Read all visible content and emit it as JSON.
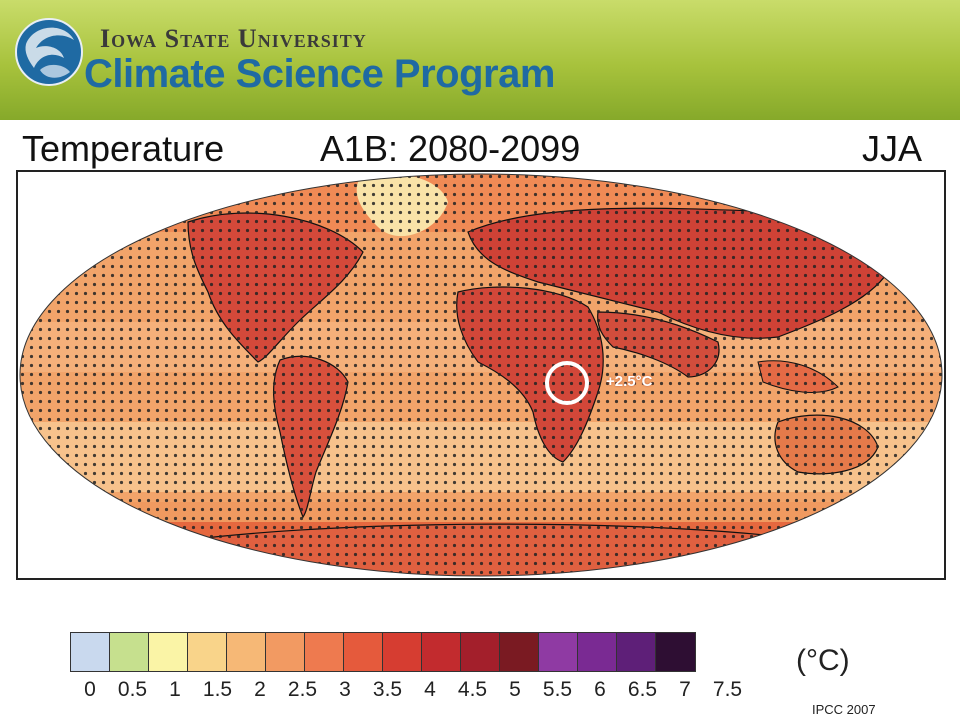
{
  "header": {
    "university": "Iowa State University",
    "program": "Climate Science Program",
    "logo_icon": "globe-swirl-logo"
  },
  "figure": {
    "title_left": "Temperature",
    "title_mid": "A1B: 2080-2099",
    "title_right": "JJA",
    "annotation": "+2.5°C",
    "annotation_marker": "circle-marker"
  },
  "legend": {
    "ticks": [
      "0",
      "0.5",
      "1",
      "1.5",
      "2",
      "2.5",
      "3",
      "3.5",
      "4",
      "4.5",
      "5",
      "5.5",
      "6",
      "6.5",
      "7",
      "7.5"
    ],
    "colors": [
      "#c9d9ee",
      "#c6e08e",
      "#faf4a6",
      "#f9d48a",
      "#f6b876",
      "#f29a62",
      "#ee7a4f",
      "#e55a3c",
      "#d63d31",
      "#c22b2e",
      "#a31f2b",
      "#7a1a22",
      "#8f3aa3",
      "#7a2a93",
      "#5e1f78",
      "#2e0e33"
    ],
    "unit": "(°C)"
  },
  "source": "IPCC 2007"
}
